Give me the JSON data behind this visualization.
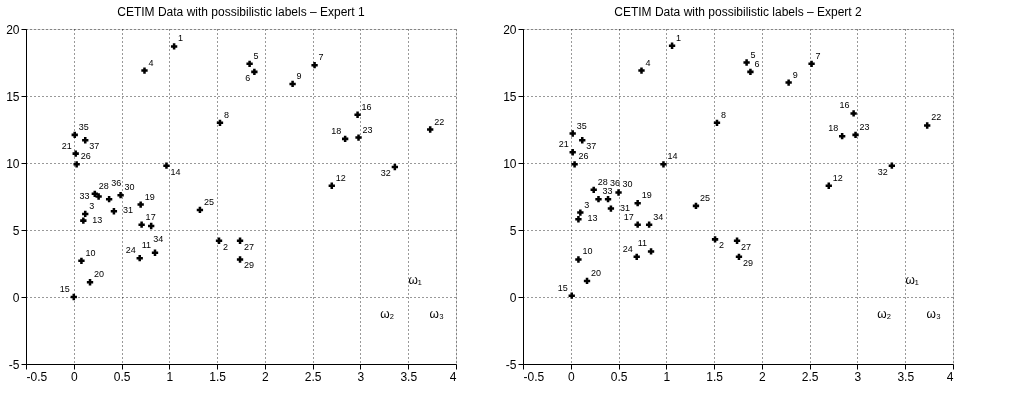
{
  "chart_data": [
    {
      "type": "scatter",
      "title": "CETIM Data with possibilistic labels – Expert 1",
      "xlim": [
        -0.5,
        4
      ],
      "ylim": [
        -5,
        20
      ],
      "xticks": [
        -0.5,
        0,
        0.5,
        1,
        1.5,
        2,
        2.5,
        3,
        3.5,
        4
      ],
      "yticks": [
        -5,
        0,
        5,
        10,
        15,
        20
      ],
      "grid": true,
      "marker": "cross",
      "series": [
        {
          "color": "#000000",
          "x": [
            1.05,
            1.52,
            0.12,
            0.74,
            1.84,
            1.89,
            2.52,
            1.53,
            2.29,
            0.08,
            0.85,
            2.7,
            0.1,
            0.97,
            0.0,
            2.97,
            0.71,
            2.84,
            0.7,
            0.17,
            0.02,
            3.73,
            2.98,
            0.69,
            1.32,
            0.03,
            1.74,
            0.22,
            1.74,
            0.49,
            0.42,
            3.36,
            0.26,
            0.81,
            0.01,
            0.37,
            0.12
          ],
          "values": [
            18.7,
            4.2,
            6.2,
            16.9,
            17.4,
            16.8,
            17.3,
            13.0,
            15.9,
            2.7,
            3.3,
            8.3,
            5.7,
            9.8,
            0.0,
            13.6,
            5.4,
            11.8,
            6.9,
            1.1,
            10.7,
            12.5,
            11.9,
            2.9,
            6.5,
            9.9,
            4.2,
            7.7,
            2.8,
            7.6,
            6.4,
            9.7,
            7.5,
            5.3,
            12.1,
            7.3,
            11.7
          ]
        }
      ],
      "annotations": [
        "ω₁",
        "ω₂",
        "ω₃",
        {
          "text": "1",
          "x": 1.05,
          "y": 18.7
        },
        {
          "text": "2",
          "x": 1.52,
          "y": 4.2
        },
        {
          "text": "3",
          "x": 0.12,
          "y": 6.2
        },
        {
          "text": "4",
          "x": 0.74,
          "y": 16.9
        },
        {
          "text": "5",
          "x": 1.84,
          "y": 17.4
        },
        {
          "text": "6",
          "x": 1.89,
          "y": 16.8
        },
        {
          "text": "7",
          "x": 2.52,
          "y": 17.3
        },
        {
          "text": "8",
          "x": 1.53,
          "y": 13.0
        },
        {
          "text": "9",
          "x": 2.29,
          "y": 15.9
        },
        {
          "text": "10",
          "x": 0.08,
          "y": 2.7
        },
        {
          "text": "11",
          "x": 0.85,
          "y": 3.3
        },
        {
          "text": "12",
          "x": 2.7,
          "y": 8.3
        },
        {
          "text": "13",
          "x": 0.1,
          "y": 5.7
        },
        {
          "text": "14",
          "x": 0.97,
          "y": 9.8
        },
        {
          "text": "15",
          "x": 0.0,
          "y": 0.0
        },
        {
          "text": "16",
          "x": 2.97,
          "y": 13.6
        },
        {
          "text": "17",
          "x": 0.71,
          "y": 5.4
        },
        {
          "text": "18",
          "x": 2.84,
          "y": 11.8
        },
        {
          "text": "19",
          "x": 0.7,
          "y": 6.9
        },
        {
          "text": "20",
          "x": 0.17,
          "y": 1.1
        },
        {
          "text": "21",
          "x": 0.02,
          "y": 10.7
        },
        {
          "text": "22",
          "x": 3.73,
          "y": 12.5
        },
        {
          "text": "23",
          "x": 2.98,
          "y": 11.9
        },
        {
          "text": "24",
          "x": 0.69,
          "y": 2.9
        },
        {
          "text": "25",
          "x": 1.32,
          "y": 6.5
        },
        {
          "text": "26",
          "x": 0.03,
          "y": 9.9
        },
        {
          "text": "27",
          "x": 1.74,
          "y": 4.2
        },
        {
          "text": "28",
          "x": 0.22,
          "y": 7.7
        },
        {
          "text": "29",
          "x": 1.74,
          "y": 2.8
        },
        {
          "text": "30",
          "x": 0.49,
          "y": 7.6
        },
        {
          "text": "31",
          "x": 0.42,
          "y": 6.4
        },
        {
          "text": "32",
          "x": 3.36,
          "y": 9.7
        },
        {
          "text": "33",
          "x": 0.26,
          "y": 7.5
        },
        {
          "text": "34",
          "x": 0.81,
          "y": 5.3
        },
        {
          "text": "35",
          "x": 0.01,
          "y": 12.1
        },
        {
          "text": "36",
          "x": 0.37,
          "y": 7.3
        },
        {
          "text": "37",
          "x": 0.12,
          "y": 11.7
        }
      ]
    },
    {
      "type": "scatter",
      "title": "CETIM Data with possibilistic labels – Expert 2",
      "xlim": [
        -0.5,
        4
      ],
      "ylim": [
        -5,
        20
      ],
      "xticks": [
        -0.5,
        0,
        0.5,
        1,
        1.5,
        2,
        2.5,
        3,
        3.5,
        4
      ],
      "yticks": [
        -5,
        0,
        5,
        10,
        15,
        20
      ],
      "grid": true,
      "marker": "cross",
      "series": [
        {
          "color": "#000000",
          "x": [
            1.06,
            1.51,
            0.1,
            0.74,
            1.84,
            1.88,
            2.52,
            1.53,
            2.28,
            0.08,
            0.84,
            2.7,
            0.08,
            0.97,
            0.01,
            2.96,
            0.7,
            2.84,
            0.7,
            0.17,
            0.02,
            3.73,
            2.98,
            0.69,
            1.31,
            0.04,
            1.74,
            0.24,
            1.76,
            0.5,
            0.42,
            3.36,
            0.29,
            0.82,
            0.02,
            0.39,
            0.12
          ],
          "values": [
            18.75,
            4.3,
            6.3,
            16.9,
            17.5,
            16.8,
            17.4,
            13.0,
            16.0,
            2.8,
            3.4,
            8.3,
            5.8,
            9.9,
            0.1,
            13.7,
            5.4,
            12.0,
            7.0,
            1.2,
            10.8,
            12.8,
            12.1,
            3.0,
            6.8,
            9.9,
            4.2,
            8.0,
            3.0,
            7.8,
            6.6,
            9.8,
            7.3,
            5.4,
            12.2,
            7.3,
            11.7
          ]
        }
      ],
      "annotations": [
        "ω₁",
        "ω₂",
        "ω₃",
        {
          "text": "1",
          "x": 1.06,
          "y": 18.75
        },
        {
          "text": "2",
          "x": 1.51,
          "y": 4.3
        },
        {
          "text": "3",
          "x": 0.1,
          "y": 6.3
        },
        {
          "text": "4",
          "x": 0.74,
          "y": 16.9
        },
        {
          "text": "5",
          "x": 1.84,
          "y": 17.5
        },
        {
          "text": "6",
          "x": 1.88,
          "y": 16.8
        },
        {
          "text": "7",
          "x": 2.52,
          "y": 17.4
        },
        {
          "text": "8",
          "x": 1.53,
          "y": 13.0
        },
        {
          "text": "9",
          "x": 2.28,
          "y": 16.0
        },
        {
          "text": "10",
          "x": 0.08,
          "y": 2.8
        },
        {
          "text": "11",
          "x": 0.84,
          "y": 3.4
        },
        {
          "text": "12",
          "x": 2.7,
          "y": 8.3
        },
        {
          "text": "13",
          "x": 0.08,
          "y": 5.8
        },
        {
          "text": "14",
          "x": 0.97,
          "y": 9.9
        },
        {
          "text": "15",
          "x": 0.01,
          "y": 0.1
        },
        {
          "text": "16",
          "x": 2.96,
          "y": 13.7
        },
        {
          "text": "17",
          "x": 0.7,
          "y": 5.4
        },
        {
          "text": "18",
          "x": 2.84,
          "y": 12.0
        },
        {
          "text": "19",
          "x": 0.7,
          "y": 7.0
        },
        {
          "text": "20",
          "x": 0.17,
          "y": 1.2
        },
        {
          "text": "21",
          "x": 0.02,
          "y": 10.8
        },
        {
          "text": "22",
          "x": 3.73,
          "y": 12.8
        },
        {
          "text": "23",
          "x": 2.98,
          "y": 12.1
        },
        {
          "text": "24",
          "x": 0.69,
          "y": 3.0
        },
        {
          "text": "25",
          "x": 1.31,
          "y": 6.8
        },
        {
          "text": "26",
          "x": 0.04,
          "y": 9.9
        },
        {
          "text": "27",
          "x": 1.74,
          "y": 4.2
        },
        {
          "text": "28",
          "x": 0.24,
          "y": 8.0
        },
        {
          "text": "29",
          "x": 1.76,
          "y": 3.0
        },
        {
          "text": "30",
          "x": 0.5,
          "y": 7.8
        },
        {
          "text": "31",
          "x": 0.42,
          "y": 6.6
        },
        {
          "text": "32",
          "x": 3.36,
          "y": 9.8
        },
        {
          "text": "33",
          "x": 0.29,
          "y": 7.3
        },
        {
          "text": "34",
          "x": 0.82,
          "y": 5.4
        },
        {
          "text": "35",
          "x": 0.02,
          "y": 12.2
        },
        {
          "text": "36",
          "x": 0.39,
          "y": 7.3
        },
        {
          "text": "37",
          "x": 0.12,
          "y": 11.7
        }
      ]
    }
  ]
}
